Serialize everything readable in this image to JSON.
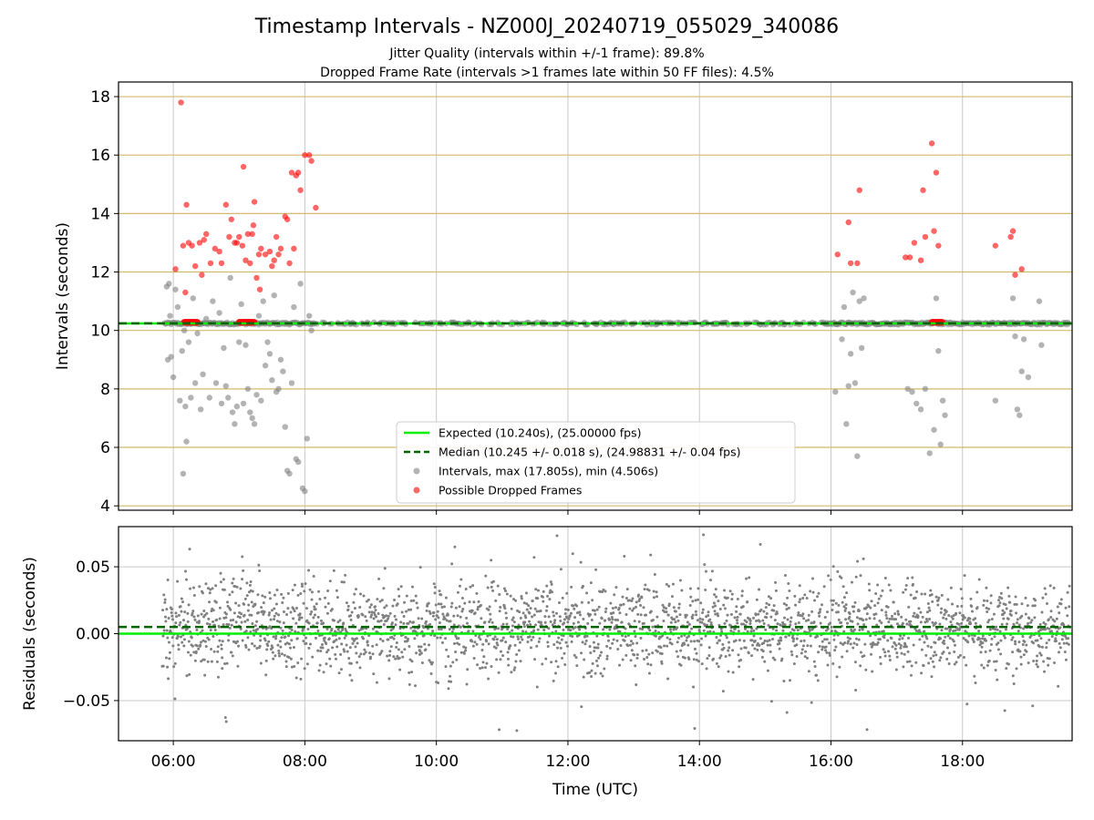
{
  "title": "Timestamp Intervals - NZ000J_20240719_055029_340086",
  "subtitle_1": "Jitter Quality (intervals within +/-1 frame): 89.8%",
  "subtitle_2": "Dropped Frame Rate (intervals >1 frames late within 50 FF files): 4.5%",
  "colors": {
    "expected": "#00ee00",
    "median": "#006400",
    "intervals": "#808080",
    "dropped": "#ff0000",
    "hgrid_top": "#d4b96a",
    "grid": "#c8c8c8"
  },
  "chart_data": [
    {
      "type": "scatter",
      "ylabel": "Intervals (seconds)",
      "xlim": [
        "05:10",
        "19:40"
      ],
      "ylim": [
        3.85,
        18.5
      ],
      "x_ticks": [
        "06:00",
        "08:00",
        "10:00",
        "12:00",
        "14:00",
        "16:00",
        "18:00"
      ],
      "y_ticks": [
        "4",
        "6",
        "8",
        "10",
        "12",
        "14",
        "16",
        "18"
      ],
      "grid": "on",
      "legend_position": "lower-center",
      "series": [
        {
          "name": "Expected (10.240s), (25.00000 fps)",
          "kind": "hline",
          "y": 10.24
        },
        {
          "name": "Median (10.245 +/- 0.018 s), (24.98831 +/- 0.04 fps)",
          "kind": "hline-dashed",
          "y": 10.245
        },
        {
          "name": "Intervals, max (17.805s), min (4.506s)",
          "kind": "scatter",
          "baseline_band": {
            "y": 10.24,
            "x_range": [
              "05:52",
              "19:38"
            ]
          },
          "outliers": [
            [
              "05:54",
              11.5
            ],
            [
              "05:55",
              9.0
            ],
            [
              "05:56",
              11.6
            ],
            [
              "05:57",
              10.5
            ],
            [
              "05:58",
              9.1
            ],
            [
              "06:00",
              8.4
            ],
            [
              "06:02",
              11.4
            ],
            [
              "06:04",
              10.8
            ],
            [
              "06:06",
              7.6
            ],
            [
              "06:08",
              9.3
            ],
            [
              "06:09",
              5.1
            ],
            [
              "06:10",
              10.0
            ],
            [
              "06:11",
              7.4
            ],
            [
              "06:12",
              6.2
            ],
            [
              "06:14",
              9.6
            ],
            [
              "06:16",
              7.7
            ],
            [
              "06:18",
              11.1
            ],
            [
              "06:20",
              8.2
            ],
            [
              "06:22",
              9.9
            ],
            [
              "06:25",
              7.3
            ],
            [
              "06:27",
              8.5
            ],
            [
              "06:30",
              10.4
            ],
            [
              "06:33",
              7.7
            ],
            [
              "06:36",
              11.0
            ],
            [
              "06:39",
              8.2
            ],
            [
              "06:42",
              10.6
            ],
            [
              "06:44",
              7.5
            ],
            [
              "06:46",
              9.4
            ],
            [
              "06:48",
              8.1
            ],
            [
              "06:50",
              7.7
            ],
            [
              "06:52",
              11.8
            ],
            [
              "06:54",
              7.2
            ],
            [
              "06:56",
              6.8
            ],
            [
              "06:58",
              7.4
            ],
            [
              "07:00",
              9.6
            ],
            [
              "07:02",
              10.9
            ],
            [
              "07:04",
              7.5
            ],
            [
              "07:06",
              9.5
            ],
            [
              "07:08",
              8.0
            ],
            [
              "07:10",
              7.2
            ],
            [
              "07:12",
              7.0
            ],
            [
              "07:14",
              6.8
            ],
            [
              "07:16",
              7.8
            ],
            [
              "07:18",
              10.5
            ],
            [
              "07:20",
              7.6
            ],
            [
              "07:22",
              11.0
            ],
            [
              "07:24",
              8.8
            ],
            [
              "07:26",
              9.6
            ],
            [
              "07:28",
              9.2
            ],
            [
              "07:30",
              8.3
            ],
            [
              "07:32",
              11.2
            ],
            [
              "07:34",
              7.9
            ],
            [
              "07:36",
              8.0
            ],
            [
              "07:38",
              9.0
            ],
            [
              "07:40",
              8.6
            ],
            [
              "07:42",
              6.7
            ],
            [
              "07:44",
              5.2
            ],
            [
              "07:46",
              5.1
            ],
            [
              "07:48",
              8.2
            ],
            [
              "07:50",
              10.8
            ],
            [
              "07:52",
              5.6
            ],
            [
              "07:54",
              5.5
            ],
            [
              "07:56",
              11.6
            ],
            [
              "07:58",
              4.6
            ],
            [
              "08:00",
              4.5
            ],
            [
              "08:02",
              6.3
            ],
            [
              "08:04",
              10.5
            ],
            [
              "08:06",
              10.0
            ],
            [
              "16:04",
              7.9
            ],
            [
              "16:10",
              9.7
            ],
            [
              "16:12",
              10.8
            ],
            [
              "16:14",
              6.8
            ],
            [
              "16:16",
              8.1
            ],
            [
              "16:18",
              9.2
            ],
            [
              "16:20",
              11.3
            ],
            [
              "16:22",
              8.2
            ],
            [
              "16:24",
              5.7
            ],
            [
              "16:26",
              11.0
            ],
            [
              "16:28",
              9.4
            ],
            [
              "16:30",
              11.1
            ],
            [
              "17:10",
              8.0
            ],
            [
              "17:14",
              7.9
            ],
            [
              "17:18",
              7.5
            ],
            [
              "17:22",
              7.3
            ],
            [
              "17:26",
              8.0
            ],
            [
              "17:30",
              5.8
            ],
            [
              "17:34",
              6.6
            ],
            [
              "17:36",
              11.1
            ],
            [
              "17:38",
              9.3
            ],
            [
              "17:40",
              6.1
            ],
            [
              "17:42",
              7.6
            ],
            [
              "17:44",
              7.1
            ],
            [
              "18:30",
              7.6
            ],
            [
              "18:46",
              11.1
            ],
            [
              "18:48",
              9.8
            ],
            [
              "18:50",
              7.3
            ],
            [
              "18:52",
              7.1
            ],
            [
              "18:54",
              8.6
            ],
            [
              "18:56",
              9.7
            ],
            [
              "19:00",
              8.4
            ],
            [
              "19:10",
              11.0
            ],
            [
              "19:12",
              9.5
            ]
          ]
        },
        {
          "name": "Possible Dropped Frames",
          "kind": "scatter",
          "baseline_clusters": [
            {
              "y": 10.28,
              "x_range": [
                "06:10",
                "06:22"
              ]
            },
            {
              "y": 10.28,
              "x_range": [
                "07:00",
                "07:14"
              ]
            },
            {
              "y": 10.28,
              "x_range": [
                "17:32",
                "17:42"
              ]
            }
          ],
          "outliers": [
            [
              "06:02",
              12.1
            ],
            [
              "06:07",
              17.8
            ],
            [
              "06:09",
              12.9
            ],
            [
              "06:11",
              11.3
            ],
            [
              "06:12",
              14.3
            ],
            [
              "06:14",
              13.0
            ],
            [
              "06:17",
              12.9
            ],
            [
              "06:20",
              12.2
            ],
            [
              "06:24",
              13.0
            ],
            [
              "06:26",
              11.9
            ],
            [
              "06:28",
              13.1
            ],
            [
              "06:30",
              13.3
            ],
            [
              "06:34",
              12.3
            ],
            [
              "06:38",
              12.8
            ],
            [
              "06:42",
              12.7
            ],
            [
              "06:44",
              12.3
            ],
            [
              "06:48",
              14.3
            ],
            [
              "06:51",
              13.2
            ],
            [
              "06:53",
              13.8
            ],
            [
              "06:56",
              13.0
            ],
            [
              "06:58",
              13.0
            ],
            [
              "07:00",
              13.2
            ],
            [
              "07:03",
              12.9
            ],
            [
              "07:04",
              15.6
            ],
            [
              "07:06",
              12.4
            ],
            [
              "07:08",
              13.3
            ],
            [
              "07:10",
              12.3
            ],
            [
              "07:12",
              13.3
            ],
            [
              "07:13",
              13.6
            ],
            [
              "07:14",
              14.4
            ],
            [
              "07:16",
              11.8
            ],
            [
              "07:18",
              12.6
            ],
            [
              "07:19",
              11.4
            ],
            [
              "07:20",
              12.8
            ],
            [
              "07:24",
              12.6
            ],
            [
              "07:28",
              12.7
            ],
            [
              "07:30",
              12.2
            ],
            [
              "07:32",
              12.4
            ],
            [
              "07:34",
              13.2
            ],
            [
              "07:36",
              12.6
            ],
            [
              "07:38",
              12.8
            ],
            [
              "07:42",
              13.9
            ],
            [
              "07:44",
              13.8
            ],
            [
              "07:46",
              12.3
            ],
            [
              "07:48",
              15.4
            ],
            [
              "07:50",
              12.8
            ],
            [
              "07:52",
              15.3
            ],
            [
              "07:54",
              15.4
            ],
            [
              "07:56",
              14.8
            ],
            [
              "08:00",
              16.0
            ],
            [
              "08:04",
              16.0
            ],
            [
              "08:06",
              15.8
            ],
            [
              "08:10",
              14.2
            ],
            [
              "16:06",
              12.6
            ],
            [
              "16:16",
              13.7
            ],
            [
              "16:18",
              12.3
            ],
            [
              "16:24",
              12.3
            ],
            [
              "16:26",
              14.8
            ],
            [
              "17:08",
              12.5
            ],
            [
              "17:12",
              12.5
            ],
            [
              "17:16",
              13.0
            ],
            [
              "17:22",
              12.4
            ],
            [
              "17:24",
              14.8
            ],
            [
              "17:26",
              13.2
            ],
            [
              "17:32",
              16.4
            ],
            [
              "17:34",
              13.4
            ],
            [
              "17:36",
              15.4
            ],
            [
              "17:38",
              12.9
            ],
            [
              "18:30",
              12.9
            ],
            [
              "18:44",
              13.2
            ],
            [
              "18:46",
              13.4
            ],
            [
              "18:48",
              11.9
            ],
            [
              "18:54",
              12.1
            ]
          ]
        }
      ]
    },
    {
      "type": "scatter",
      "xlabel": "Time (UTC)",
      "ylabel": "Residuals (seconds)",
      "xlim": [
        "05:10",
        "19:40"
      ],
      "ylim": [
        -0.08,
        0.08
      ],
      "y_ticks": [
        "−0.05",
        "0.00",
        "0.05"
      ],
      "grid": "on",
      "series": [
        {
          "name": "Expected",
          "kind": "hline",
          "y": 0.0
        },
        {
          "name": "Median",
          "kind": "hline-dashed",
          "y": 0.005
        },
        {
          "name": "Residuals",
          "kind": "scatter",
          "x_range": [
            "05:50",
            "19:38"
          ],
          "y_spread": 0.025
        }
      ]
    }
  ]
}
